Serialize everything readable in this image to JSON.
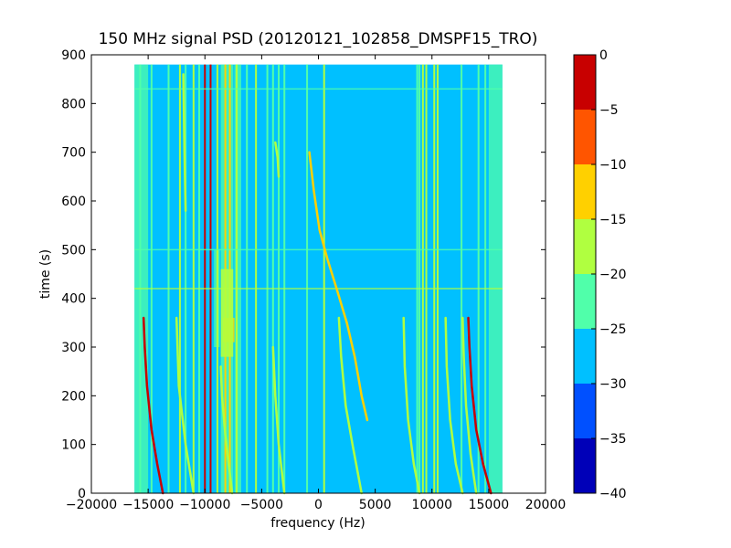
{
  "chart_data": {
    "type": "heatmap",
    "title": "150 MHz signal PSD (20120121_102858_DMSPF15_TRO)",
    "xlabel": "frequency (Hz)",
    "ylabel": "time (s)",
    "xlim": [
      -20000,
      20000
    ],
    "ylim": [
      0,
      900
    ],
    "x_ticks": [
      -20000,
      -15000,
      -10000,
      -5000,
      0,
      5000,
      10000,
      15000,
      20000
    ],
    "x_tick_labels": [
      "−20000",
      "−15000",
      "−10000",
      "−5000",
      "0",
      "5000",
      "10000",
      "15000",
      "20000"
    ],
    "y_ticks": [
      0,
      100,
      200,
      300,
      400,
      500,
      600,
      700,
      800,
      900
    ],
    "y_tick_labels": [
      "0",
      "100",
      "200",
      "300",
      "400",
      "500",
      "600",
      "700",
      "800",
      "900"
    ],
    "data_extent": {
      "x": [
        -16200,
        16200
      ],
      "y": [
        0,
        880
      ]
    },
    "background_level": -27,
    "colorbar": {
      "levels": [
        -40,
        -35,
        -30,
        -25,
        -20,
        -15,
        -10,
        -5,
        0
      ],
      "tick_labels": [
        "−40",
        "−35",
        "−30",
        "−25",
        "−20",
        "−15",
        "−10",
        "−5",
        "0"
      ],
      "colors": [
        "#0000b8",
        "#0050ff",
        "#00c0ff",
        "#50ffaa",
        "#b0ff40",
        "#ffd000",
        "#ff5500",
        "#c80000"
      ]
    },
    "features": [
      {
        "kind": "band",
        "x": [
          -16200,
          -15000
        ],
        "y": [
          0,
          880
        ],
        "level": -22
      },
      {
        "kind": "band",
        "x": [
          15000,
          16200
        ],
        "y": [
          0,
          880
        ],
        "level": -22
      },
      {
        "kind": "band",
        "x": [
          -8600,
          -7500
        ],
        "y": [
          0,
          880
        ],
        "level": -21
      },
      {
        "kind": "band",
        "x": [
          -7400,
          -6800
        ],
        "y": [
          0,
          880
        ],
        "level": -22
      },
      {
        "kind": "band",
        "x": [
          -9200,
          -8700
        ],
        "y": [
          300,
          500
        ],
        "level": -22
      },
      {
        "kind": "line",
        "x": -15700,
        "y": [
          0,
          880
        ],
        "level": -21
      },
      {
        "kind": "line",
        "x": -14700,
        "y": [
          0,
          880
        ],
        "level": -21
      },
      {
        "kind": "line",
        "x": -13200,
        "y": [
          0,
          880
        ],
        "level": -21
      },
      {
        "kind": "line",
        "x": -12200,
        "y": [
          0,
          880
        ],
        "level": -17
      },
      {
        "kind": "line",
        "x": -11700,
        "y": [
          0,
          880
        ],
        "level": -21
      },
      {
        "kind": "line",
        "x": -11000,
        "y": [
          0,
          880
        ],
        "level": -17
      },
      {
        "kind": "line",
        "x": -10500,
        "y": [
          0,
          880
        ],
        "level": -21
      },
      {
        "kind": "line",
        "x": -10000,
        "y": [
          0,
          880
        ],
        "level": -2
      },
      {
        "kind": "line",
        "x": -9500,
        "y": [
          0,
          880
        ],
        "level": -2
      },
      {
        "kind": "line",
        "x": -8900,
        "y": [
          0,
          880
        ],
        "level": -17
      },
      {
        "kind": "line",
        "x": -8200,
        "y": [
          0,
          880
        ],
        "level": -12
      },
      {
        "kind": "line",
        "x": -7800,
        "y": [
          0,
          880
        ],
        "level": -12
      },
      {
        "kind": "line",
        "x": -7200,
        "y": [
          0,
          880
        ],
        "level": -17
      },
      {
        "kind": "line",
        "x": -6300,
        "y": [
          0,
          880
        ],
        "level": -21
      },
      {
        "kind": "line",
        "x": -5500,
        "y": [
          0,
          880
        ],
        "level": -17
      },
      {
        "kind": "line",
        "x": -4500,
        "y": [
          0,
          880
        ],
        "level": -21
      },
      {
        "kind": "line",
        "x": -4000,
        "y": [
          0,
          880
        ],
        "level": -21
      },
      {
        "kind": "line",
        "x": -3500,
        "y": [
          0,
          880
        ],
        "level": -21
      },
      {
        "kind": "line",
        "x": -3000,
        "y": [
          0,
          880
        ],
        "level": -21
      },
      {
        "kind": "line",
        "x": -1000,
        "y": [
          0,
          880
        ],
        "level": -21
      },
      {
        "kind": "line",
        "x": 500,
        "y": [
          0,
          880
        ],
        "level": -17
      },
      {
        "kind": "line",
        "x": 8700,
        "y": [
          0,
          880
        ],
        "level": -21
      },
      {
        "kind": "line",
        "x": 8900,
        "y": [
          0,
          880
        ],
        "level": -21
      },
      {
        "kind": "line",
        "x": 9200,
        "y": [
          0,
          880
        ],
        "level": -17
      },
      {
        "kind": "line",
        "x": 9500,
        "y": [
          0,
          880
        ],
        "level": -17
      },
      {
        "kind": "line",
        "x": 10200,
        "y": [
          0,
          880
        ],
        "level": -17
      },
      {
        "kind": "line",
        "x": 10500,
        "y": [
          0,
          880
        ],
        "level": -17
      },
      {
        "kind": "line",
        "x": 12600,
        "y": [
          0,
          880
        ],
        "level": -21
      },
      {
        "kind": "line",
        "x": 14100,
        "y": [
          0,
          880
        ],
        "level": -21
      },
      {
        "kind": "line",
        "x": 14700,
        "y": [
          0,
          880
        ],
        "level": -21
      },
      {
        "kind": "hline",
        "y": 420,
        "x": [
          -16200,
          16200
        ],
        "level": -17
      },
      {
        "kind": "hline",
        "y": 500,
        "x": [
          -16200,
          16200
        ],
        "level": -21
      },
      {
        "kind": "hline",
        "y": 830,
        "x": [
          -16200,
          16200
        ],
        "level": -22
      },
      {
        "kind": "blob",
        "x": [
          -8400,
          -7400
        ],
        "y": [
          310,
          360
        ],
        "level": -12
      },
      {
        "kind": "blob",
        "x": [
          -8600,
          -7500
        ],
        "y": [
          280,
          460
        ],
        "level": -18
      },
      {
        "kind": "curve",
        "level": -2,
        "points": [
          [
            -15400,
            360
          ],
          [
            -15300,
            300
          ],
          [
            -15100,
            220
          ],
          [
            -14700,
            130
          ],
          [
            -14200,
            60
          ],
          [
            -13700,
            0
          ]
        ]
      },
      {
        "kind": "curve",
        "level": -2,
        "points": [
          [
            13200,
            360
          ],
          [
            13300,
            300
          ],
          [
            13500,
            220
          ],
          [
            13900,
            130
          ],
          [
            14500,
            60
          ],
          [
            15200,
            0
          ]
        ]
      },
      {
        "kind": "curve",
        "level": -17,
        "points": [
          [
            -12500,
            360
          ],
          [
            -12300,
            220
          ],
          [
            -11700,
            100
          ],
          [
            -11000,
            0
          ]
        ]
      },
      {
        "kind": "curve",
        "level": -17,
        "points": [
          [
            -8600,
            260
          ],
          [
            -8500,
            200
          ],
          [
            -8200,
            120
          ],
          [
            -7800,
            40
          ],
          [
            -7600,
            0
          ]
        ]
      },
      {
        "kind": "curve",
        "level": -17,
        "points": [
          [
            -4000,
            300
          ],
          [
            -3800,
            200
          ],
          [
            -3500,
            100
          ],
          [
            -3000,
            0
          ]
        ]
      },
      {
        "kind": "curve",
        "level": -17,
        "points": [
          [
            -3800,
            720
          ],
          [
            -3600,
            690
          ],
          [
            -3500,
            650
          ]
        ]
      },
      {
        "kind": "curve",
        "level": -17,
        "points": [
          [
            -11900,
            860
          ],
          [
            -11800,
            700
          ],
          [
            -11700,
            580
          ]
        ]
      },
      {
        "kind": "curve",
        "level": -12,
        "points": [
          [
            -800,
            700
          ],
          [
            -400,
            620
          ],
          [
            100,
            540
          ],
          [
            800,
            480
          ],
          [
            1600,
            420
          ],
          [
            2500,
            350
          ],
          [
            3200,
            280
          ],
          [
            3800,
            200
          ],
          [
            4300,
            150
          ]
        ]
      },
      {
        "kind": "curve",
        "level": -17,
        "points": [
          [
            1800,
            360
          ],
          [
            2000,
            280
          ],
          [
            2400,
            180
          ],
          [
            3000,
            100
          ],
          [
            3800,
            0
          ]
        ]
      },
      {
        "kind": "curve",
        "level": -17,
        "points": [
          [
            7500,
            360
          ],
          [
            7600,
            260
          ],
          [
            7900,
            150
          ],
          [
            8400,
            60
          ],
          [
            8900,
            0
          ]
        ]
      },
      {
        "kind": "curve",
        "level": -17,
        "points": [
          [
            11200,
            360
          ],
          [
            11300,
            260
          ],
          [
            11600,
            150
          ],
          [
            12100,
            60
          ],
          [
            12700,
            0
          ]
        ]
      },
      {
        "kind": "curve",
        "level": -17,
        "points": [
          [
            12700,
            360
          ],
          [
            12800,
            280
          ],
          [
            13000,
            180
          ],
          [
            13400,
            80
          ],
          [
            13900,
            0
          ]
        ]
      }
    ]
  }
}
